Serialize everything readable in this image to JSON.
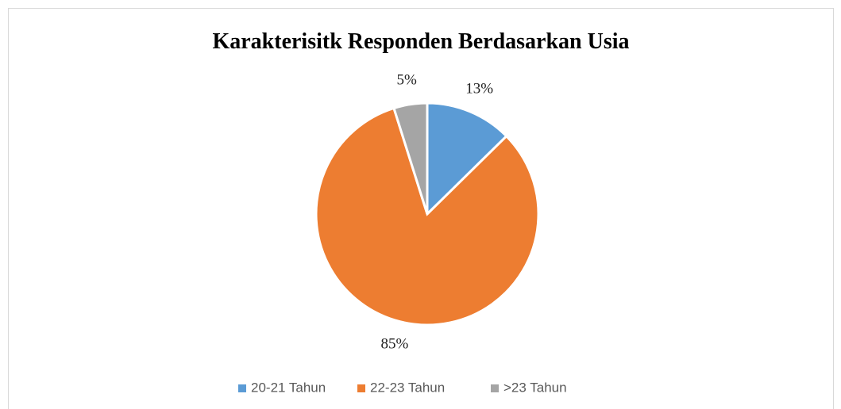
{
  "chart_data": {
    "type": "pie",
    "title": "Karakterisitk Responden Berdasarkan Usia",
    "categories": [
      "20-21 Tahun",
      "22-23 Tahun",
      ">23 Tahun"
    ],
    "values": [
      13,
      85,
      5
    ],
    "value_labels": [
      "13%",
      "85%",
      "5%"
    ],
    "colors": [
      "#5b9bd5",
      "#ed7d31",
      "#a5a5a5"
    ],
    "legend": "bottom"
  }
}
